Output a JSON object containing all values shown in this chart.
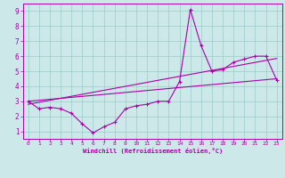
{
  "xlabel": "Windchill (Refroidissement éolien,°C)",
  "bg_color": "#cce8e8",
  "line_color": "#aa00aa",
  "grid_color": "#99cccc",
  "xlim": [
    -0.5,
    23.5
  ],
  "ylim": [
    0.5,
    9.5
  ],
  "xticks": [
    0,
    1,
    2,
    3,
    4,
    5,
    6,
    7,
    8,
    9,
    10,
    11,
    12,
    13,
    14,
    15,
    16,
    17,
    18,
    19,
    20,
    21,
    22,
    23
  ],
  "yticks": [
    1,
    2,
    3,
    4,
    5,
    6,
    7,
    8,
    9
  ],
  "line1_x": [
    0,
    1,
    2,
    3,
    4,
    5,
    6,
    7,
    8,
    9,
    10,
    11,
    12,
    13,
    14,
    15,
    16,
    17,
    18,
    19,
    20,
    21,
    22,
    23
  ],
  "line1_y": [
    3.0,
    2.5,
    2.6,
    2.5,
    2.2,
    1.5,
    0.9,
    1.3,
    1.6,
    2.5,
    2.7,
    2.8,
    3.0,
    3.0,
    4.3,
    9.1,
    6.7,
    5.0,
    5.1,
    5.6,
    5.8,
    6.0,
    6.0,
    4.4
  ],
  "line2_x": [
    0,
    23
  ],
  "line2_y": [
    3.0,
    4.5
  ],
  "line3_x": [
    0,
    23
  ],
  "line3_y": [
    2.8,
    5.85
  ]
}
